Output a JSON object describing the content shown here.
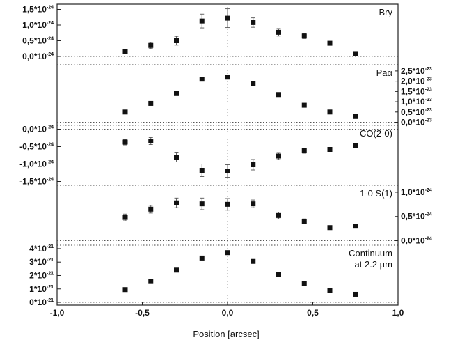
{
  "chart_data": {
    "type": "scatter",
    "xlabel": "Position [arcsec]",
    "xlim": [
      -1.0,
      1.0
    ],
    "x_ticks": [
      "-1,0",
      "-0,5",
      "0,0",
      "0,5",
      "1,0"
    ],
    "grid": "dotted zero lines",
    "panels": [
      {
        "label": "Brγ",
        "axis_side": "left",
        "ylim": [
          -2e-25,
          1.6e-24
        ],
        "y_ticks": [
          {
            "v": 0.0,
            "label": "0,0*10^-24"
          },
          {
            "v": 5e-25,
            "label": "0,5*10^-24"
          },
          {
            "v": 1e-24,
            "label": "1,0*10^-24"
          },
          {
            "v": 1.5e-24,
            "label": "1,5*10^-24"
          }
        ],
        "points": [
          {
            "x": -0.6,
            "y": 1.6e-25,
            "err": 7e-26
          },
          {
            "x": -0.45,
            "y": 3.5e-25,
            "err": 1e-25
          },
          {
            "x": -0.3,
            "y": 5e-25,
            "err": 1.4e-25
          },
          {
            "x": -0.15,
            "y": 1.13e-24,
            "err": 2.2e-25
          },
          {
            "x": 0.0,
            "y": 1.22e-24,
            "err": 3e-25
          },
          {
            "x": 0.15,
            "y": 1.08e-24,
            "err": 1.5e-25
          },
          {
            "x": 0.3,
            "y": 7.7e-25,
            "err": 1.2e-25
          },
          {
            "x": 0.45,
            "y": 6.5e-25,
            "err": 8e-26
          },
          {
            "x": 0.6,
            "y": 4.2e-25,
            "err": 4e-26
          },
          {
            "x": 0.75,
            "y": 9e-26,
            "err": 4e-26
          }
        ]
      },
      {
        "label": "Paα",
        "axis_side": "right",
        "ylim": [
          -5e-25,
          2.7e-23
        ],
        "y_ticks": [
          {
            "v": 0.0,
            "label": "0,0*10^-23"
          },
          {
            "v": 5e-24,
            "label": "0,5*10^-23"
          },
          {
            "v": 1e-23,
            "label": "1,0*10^-23"
          },
          {
            "v": 1.5e-23,
            "label": "1,5*10^-23"
          },
          {
            "v": 2e-23,
            "label": "2,0*10^-23"
          },
          {
            "v": 2.5e-23,
            "label": "2,5*10^-23"
          }
        ],
        "points": [
          {
            "x": -0.6,
            "y": 5e-24,
            "err": 3e-25
          },
          {
            "x": -0.45,
            "y": 9.2e-24,
            "err": 3e-25
          },
          {
            "x": -0.3,
            "y": 1.4e-23,
            "err": 4e-25
          },
          {
            "x": -0.15,
            "y": 2.1e-23,
            "err": 4e-25
          },
          {
            "x": 0.0,
            "y": 2.2e-23,
            "err": 4e-25
          },
          {
            "x": 0.15,
            "y": 1.88e-23,
            "err": 4e-25
          },
          {
            "x": 0.3,
            "y": 1.35e-23,
            "err": 4e-25
          },
          {
            "x": 0.45,
            "y": 8.3e-24,
            "err": 3e-25
          },
          {
            "x": 0.6,
            "y": 5e-24,
            "err": 3e-25
          },
          {
            "x": 0.75,
            "y": 2.8e-24,
            "err": 3e-25
          }
        ]
      },
      {
        "label": "CO(2-0)",
        "axis_side": "left",
        "ylim": [
          -1.55e-24,
          5e-26
        ],
        "y_ticks": [
          {
            "v": 0.0,
            "label": "0,0*10^-24"
          },
          {
            "v": -5e-25,
            "label": "-0,5*10^-24"
          },
          {
            "v": -1e-24,
            "label": "-1,0*10^-24"
          },
          {
            "v": -1.5e-24,
            "label": "-1,5*10^-24"
          }
        ],
        "points": [
          {
            "x": -0.6,
            "y": -3.7e-25,
            "err": 8e-26
          },
          {
            "x": -0.45,
            "y": -3.4e-25,
            "err": 1e-25
          },
          {
            "x": -0.3,
            "y": -8e-25,
            "err": 1.4e-25
          },
          {
            "x": -0.15,
            "y": -1.18e-24,
            "err": 1.8e-25
          },
          {
            "x": 0.0,
            "y": -1.2e-24,
            "err": 1.8e-25
          },
          {
            "x": 0.15,
            "y": -1.02e-24,
            "err": 1.5e-25
          },
          {
            "x": 0.3,
            "y": -7.7e-25,
            "err": 1e-25
          },
          {
            "x": 0.45,
            "y": -6.2e-25,
            "err": 7e-26
          },
          {
            "x": 0.6,
            "y": -5.8e-25,
            "err": 5e-26
          },
          {
            "x": 0.75,
            "y": -4.7e-25,
            "err": 4e-26
          }
        ]
      },
      {
        "label": "1-0 S(1)",
        "axis_side": "right",
        "ylim": [
          -5e-26,
          1.1e-24
        ],
        "y_ticks": [
          {
            "v": 0.0,
            "label": "0,0*10^-24"
          },
          {
            "v": 5e-25,
            "label": "0,5*10^-24"
          },
          {
            "v": 1e-24,
            "label": "1,0*10^-24"
          }
        ],
        "points": [
          {
            "x": -0.6,
            "y": 4.8e-25,
            "err": 7e-26
          },
          {
            "x": -0.45,
            "y": 6.5e-25,
            "err": 8e-26
          },
          {
            "x": -0.3,
            "y": 7.8e-25,
            "err": 1e-25
          },
          {
            "x": -0.15,
            "y": 7.6e-25,
            "err": 1.2e-25
          },
          {
            "x": 0.0,
            "y": 7.5e-25,
            "err": 1.2e-25
          },
          {
            "x": 0.15,
            "y": 7.6e-25,
            "err": 8e-26
          },
          {
            "x": 0.3,
            "y": 5.2e-25,
            "err": 7e-26
          },
          {
            "x": 0.45,
            "y": 4e-25,
            "err": 5e-26
          },
          {
            "x": 0.6,
            "y": 2.7e-25,
            "err": 3e-26
          },
          {
            "x": 0.75,
            "y": 3e-25,
            "err": 3e-26
          }
        ]
      },
      {
        "label": "Continuum",
        "label2": "at 2.2 µm",
        "axis_side": "left",
        "ylim": [
          -5e-23,
          4.1e-21
        ],
        "y_ticks": [
          {
            "v": 0.0,
            "label": "0*10^-21"
          },
          {
            "v": 1e-21,
            "label": "1*10^-21"
          },
          {
            "v": 2e-21,
            "label": "2*10^-21"
          },
          {
            "v": 3e-21,
            "label": "3*10^-21"
          },
          {
            "v": 4e-21,
            "label": "4*10^-21"
          }
        ],
        "points": [
          {
            "x": -0.6,
            "y": 9.5e-22,
            "err": 3e-23
          },
          {
            "x": -0.45,
            "y": 1.55e-21,
            "err": 3e-23
          },
          {
            "x": -0.3,
            "y": 2.4e-21,
            "err": 4e-23
          },
          {
            "x": -0.15,
            "y": 3.3e-21,
            "err": 4e-23
          },
          {
            "x": 0.0,
            "y": 3.7e-21,
            "err": 4e-23
          },
          {
            "x": 0.15,
            "y": 3.05e-21,
            "err": 4e-23
          },
          {
            "x": 0.3,
            "y": 2.1e-21,
            "err": 4e-23
          },
          {
            "x": 0.45,
            "y": 1.4e-21,
            "err": 3e-23
          },
          {
            "x": 0.6,
            "y": 9e-22,
            "err": 3e-23
          },
          {
            "x": 0.75,
            "y": 6e-22,
            "err": 3e-23
          }
        ]
      }
    ]
  }
}
